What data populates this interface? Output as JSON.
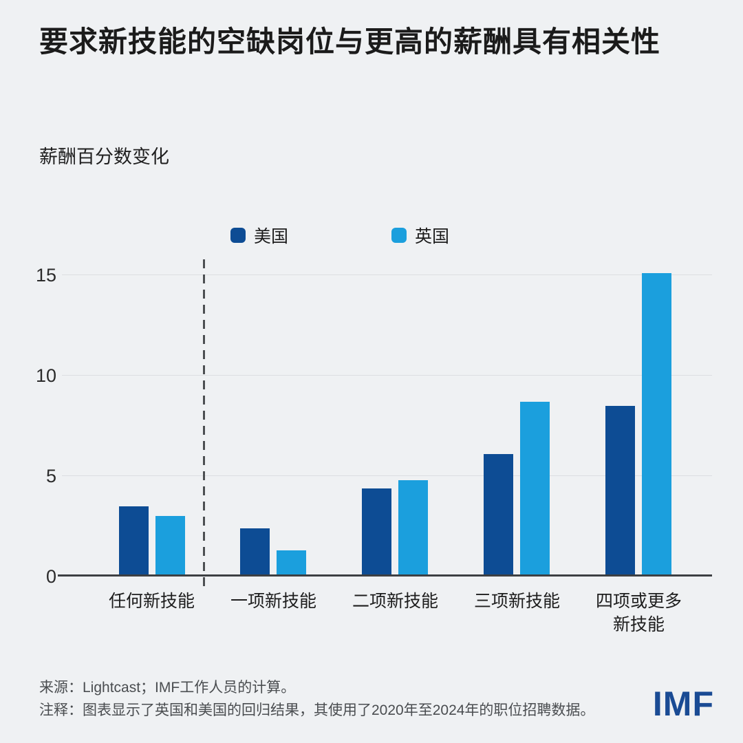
{
  "header": {
    "title": "要求新技能的空缺岗位与更高的薪酬具有相关性",
    "subtitle": "薪酬百分数变化"
  },
  "legend": [
    {
      "label": "美国",
      "color": "#0d4c94"
    },
    {
      "label": "英国",
      "color": "#1b9fdd"
    }
  ],
  "chart_data": {
    "type": "bar",
    "title": "要求新技能的空缺岗位与更高的薪酬具有相关性",
    "ylabel": "薪酬百分数变化",
    "categories": [
      "任何新技能",
      "一项新技能",
      "二项新技能",
      "三项新技能",
      "四项或更多\n新技能"
    ],
    "series": [
      {
        "name": "美国",
        "color": "#0d4c94",
        "values": [
          3.5,
          2.4,
          4.4,
          6.1,
          8.5
        ]
      },
      {
        "name": "英国",
        "color": "#1b9fdd",
        "values": [
          3.0,
          1.3,
          4.8,
          8.7,
          15.1
        ]
      }
    ],
    "ylim": [
      0,
      15.8
    ],
    "yticks": [
      0,
      5,
      10,
      15
    ],
    "grid": true,
    "legend_position": "top",
    "separator_after_category": "任何新技能"
  },
  "footer": {
    "source": "来源：Lightcast；IMF工作人员的计算。",
    "note": "注释：图表显示了英国和美国的回归结果，其使用了2020年至2024年的职位招聘数据。",
    "logo": "IMF"
  },
  "colors": {
    "background": "#eff1f3",
    "us_bar": "#0d4c94",
    "uk_bar": "#1b9fdd",
    "gridline": "#dcdee1",
    "baseline": "#3d4043",
    "separator": "#4c4f52",
    "logo": "#1a4b94"
  }
}
